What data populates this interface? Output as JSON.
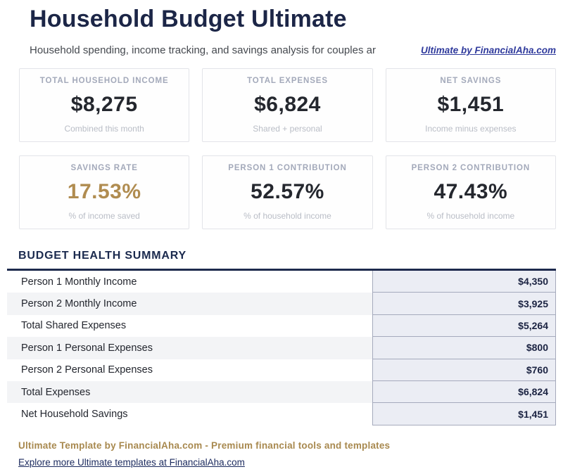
{
  "header": {
    "title": "Household Budget Ultimate",
    "subtitle": "Household spending, income tracking, and savings analysis for couples ar",
    "brand_link": "Ultimate by FinancialAha.com"
  },
  "stat_cards": [
    {
      "label": "TOTAL HOUSEHOLD INCOME",
      "value": "$8,275",
      "caption": "Combined this month",
      "value_color": "#24272e"
    },
    {
      "label": "TOTAL EXPENSES",
      "value": "$6,824",
      "caption": "Shared + personal",
      "value_color": "#24272e"
    },
    {
      "label": "NET SAVINGS",
      "value": "$1,451",
      "caption": "Income minus expenses",
      "value_color": "#24272e"
    },
    {
      "label": "SAVINGS RATE",
      "value": "17.53%",
      "caption": "% of income saved",
      "value_color": "#b08c50"
    },
    {
      "label": "PERSON 1 CONTRIBUTION",
      "value": "52.57%",
      "caption": "% of household income",
      "value_color": "#24272e"
    },
    {
      "label": "PERSON 2 CONTRIBUTION",
      "value": "47.43%",
      "caption": "% of household income",
      "value_color": "#24272e"
    }
  ],
  "summary": {
    "heading": "BUDGET HEALTH SUMMARY",
    "rows": [
      {
        "label": "Person 1 Monthly Income",
        "value": "$4,350"
      },
      {
        "label": "Person 2 Monthly Income",
        "value": "$3,925"
      },
      {
        "label": "Total Shared Expenses",
        "value": "$5,264"
      },
      {
        "label": "Person 1 Personal Expenses",
        "value": "$800"
      },
      {
        "label": "Person 2 Personal Expenses",
        "value": "$760"
      },
      {
        "label": "Total Expenses",
        "value": "$6,824"
      },
      {
        "label": "Net Household Savings",
        "value": "$1,451"
      }
    ]
  },
  "footer": {
    "tagline": "Ultimate Template by FinancialAha.com - Premium financial tools and templates",
    "link": "Explore more Ultimate templates at FinancialAha.com"
  },
  "colors": {
    "accent_gold": "#b08c50",
    "navy": "#1e2a4d",
    "link_indigo": "#2f3a9c"
  }
}
